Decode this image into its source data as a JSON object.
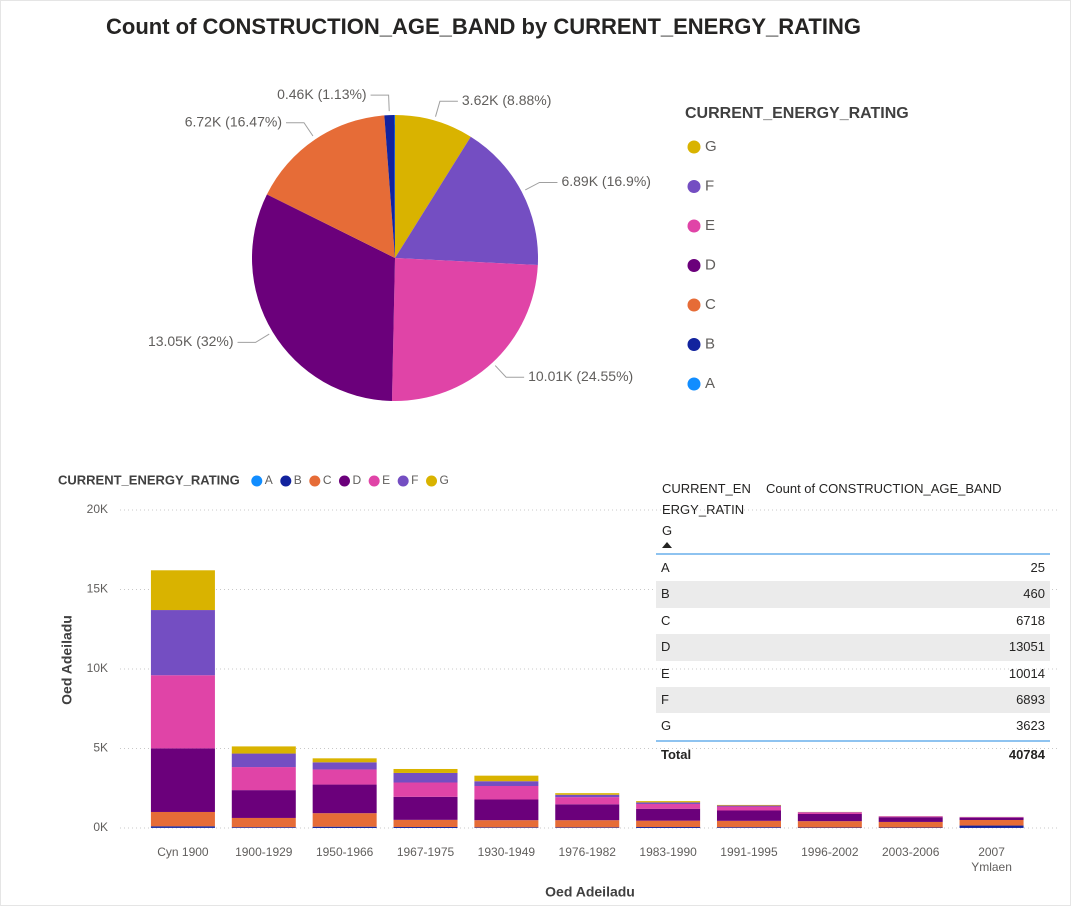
{
  "chart_data": [
    {
      "type": "pie",
      "title": "Count of CONSTRUCTION_AGE_BAND by CURRENT_ENERGY_RATING",
      "legend_title": "CURRENT_ENERGY_RATING",
      "categories": [
        "G",
        "F",
        "E",
        "D",
        "C",
        "B",
        "A"
      ],
      "values": [
        3623,
        6893,
        10014,
        13051,
        6718,
        460,
        25
      ],
      "value_labels": [
        "3.62K (8.88%)",
        "6.89K (16.9%)",
        "10.01K (24.55%)",
        "13.05K (32%)",
        "6.72K (16.47%)",
        "0.46K (1.13%)",
        null
      ],
      "colors": [
        "#d9b300",
        "#744ec2",
        "#e044a7",
        "#6b007b",
        "#e66c37",
        "#12239e",
        "#118dff"
      ],
      "legend": "right"
    },
    {
      "type": "stacked_bar",
      "legend_title": "CURRENT_ENERGY_RATING",
      "x_label": "Oed Adeiladu",
      "y_label": "Oed Adeiladu",
      "categories": [
        "Cyn 1900",
        "1900-1929",
        "1950-1966",
        "1967-1975",
        "1930-1949",
        "1976-1982",
        "1983-1990",
        "1991-1995",
        "1996-2002",
        "2003-2006",
        "2007 Ymlaen"
      ],
      "series": [
        {
          "name": "A",
          "color": "#118dff",
          "values": [
            8,
            2,
            2,
            2,
            2,
            1,
            1,
            1,
            1,
            1,
            4
          ]
        },
        {
          "name": "B",
          "color": "#12239e",
          "values": [
            100,
            50,
            80,
            60,
            40,
            40,
            60,
            50,
            30,
            30,
            150
          ]
        },
        {
          "name": "C",
          "color": "#e66c37",
          "values": [
            900,
            580,
            850,
            450,
            450,
            450,
            400,
            400,
            400,
            350,
            350
          ]
        },
        {
          "name": "D",
          "color": "#6b007b",
          "values": [
            4000,
            1750,
            1800,
            1450,
            1300,
            1000,
            750,
            650,
            450,
            300,
            150
          ]
        },
        {
          "name": "E",
          "color": "#e044a7",
          "values": [
            4600,
            1450,
            950,
            900,
            850,
            450,
            300,
            250,
            100,
            50,
            30
          ]
        },
        {
          "name": "F",
          "color": "#744ec2",
          "values": [
            4100,
            850,
            450,
            600,
            300,
            150,
            100,
            60,
            20,
            10,
            10
          ]
        },
        {
          "name": "G",
          "color": "#d9b300",
          "values": [
            2500,
            450,
            250,
            250,
            350,
            100,
            80,
            40,
            10,
            5,
            5
          ]
        }
      ],
      "ylim": [
        0,
        20000
      ],
      "yticks": [
        {
          "value": 0,
          "label": "0K"
        },
        {
          "value": 5000,
          "label": "5K"
        },
        {
          "value": 10000,
          "label": "10K"
        },
        {
          "value": 15000,
          "label": "15K"
        },
        {
          "value": 20000,
          "label": "20K"
        }
      ],
      "grid": true,
      "legend": "top-left"
    }
  ],
  "table": {
    "columns": [
      "CURRENT_ENERGY_RATING",
      "Count of CONSTRUCTION_AGE_BAND"
    ],
    "rows": [
      [
        "A",
        25
      ],
      [
        "B",
        460
      ],
      [
        "C",
        6718
      ],
      [
        "D",
        13051
      ],
      [
        "E",
        10014
      ],
      [
        "F",
        6893
      ],
      [
        "G",
        3623
      ]
    ],
    "total": [
      "Total",
      40784
    ]
  }
}
